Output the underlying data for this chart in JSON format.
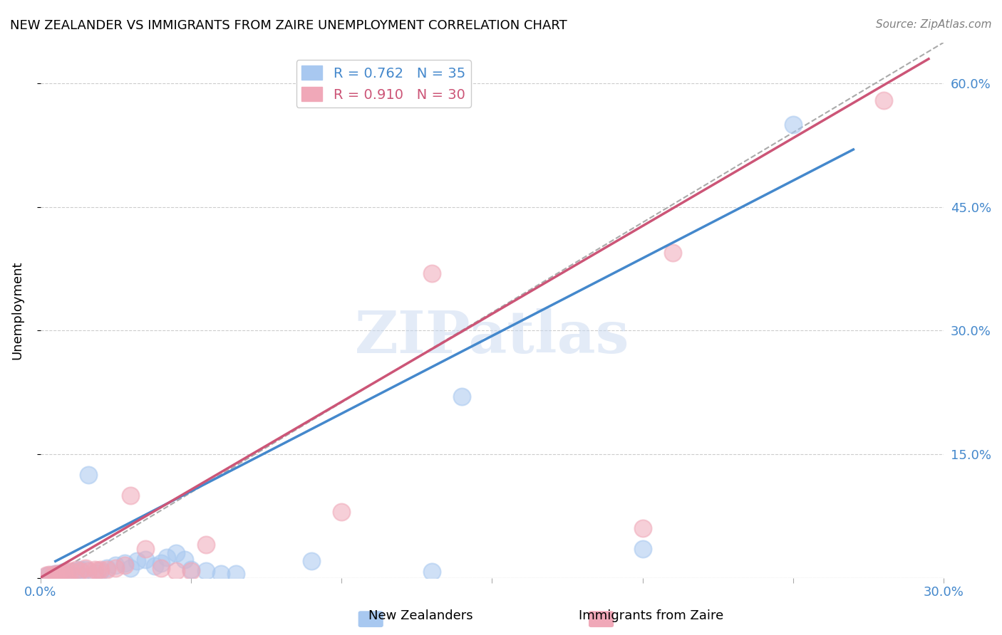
{
  "title": "NEW ZEALANDER VS IMMIGRANTS FROM ZAIRE UNEMPLOYMENT CORRELATION CHART",
  "source": "Source: ZipAtlas.com",
  "xlabel": "",
  "ylabel": "Unemployment",
  "xlim": [
    0.0,
    0.3
  ],
  "ylim": [
    0.0,
    0.65
  ],
  "x_ticks": [
    0.0,
    0.05,
    0.1,
    0.15,
    0.2,
    0.25,
    0.3
  ],
  "x_tick_labels": [
    "0.0%",
    "",
    "",
    "",
    "",
    "",
    "30.0%"
  ],
  "y_ticks": [
    0.0,
    0.15,
    0.3,
    0.45,
    0.6
  ],
  "y_tick_labels_right": [
    "",
    "15.0%",
    "30.0%",
    "45.0%",
    "60.0%"
  ],
  "legend": {
    "blue_R": "R = 0.762",
    "blue_N": "N = 35",
    "pink_R": "R = 0.910",
    "pink_N": "N = 30"
  },
  "legend_labels": [
    "New Zealanders",
    "Immigrants from Zaire"
  ],
  "blue_color": "#a8c8f0",
  "pink_color": "#f0a8b8",
  "blue_line_color": "#4488cc",
  "pink_line_color": "#cc5577",
  "diagonal_color": "#aaaaaa",
  "watermark": "ZIPatlas",
  "blue_scatter": [
    [
      0.005,
      0.005
    ],
    [
      0.008,
      0.007
    ],
    [
      0.01,
      0.004
    ],
    [
      0.012,
      0.008
    ],
    [
      0.015,
      0.01
    ],
    [
      0.018,
      0.006
    ],
    [
      0.02,
      0.008
    ],
    [
      0.022,
      0.012
    ],
    [
      0.025,
      0.015
    ],
    [
      0.028,
      0.018
    ],
    [
      0.03,
      0.012
    ],
    [
      0.032,
      0.02
    ],
    [
      0.035,
      0.022
    ],
    [
      0.038,
      0.014
    ],
    [
      0.04,
      0.018
    ],
    [
      0.042,
      0.025
    ],
    [
      0.045,
      0.03
    ],
    [
      0.048,
      0.022
    ],
    [
      0.05,
      0.01
    ],
    [
      0.055,
      0.008
    ],
    [
      0.06,
      0.005
    ],
    [
      0.065,
      0.005
    ],
    [
      0.003,
      0.003
    ],
    [
      0.007,
      0.006
    ],
    [
      0.009,
      0.003
    ],
    [
      0.013,
      0.01
    ],
    [
      0.016,
      0.125
    ],
    [
      0.09,
      0.02
    ],
    [
      0.13,
      0.007
    ],
    [
      0.2,
      0.035
    ],
    [
      0.14,
      0.22
    ],
    [
      0.25,
      0.55
    ],
    [
      0.002,
      0.002
    ],
    [
      0.004,
      0.004
    ],
    [
      0.006,
      0.005
    ]
  ],
  "pink_scatter": [
    [
      0.005,
      0.005
    ],
    [
      0.008,
      0.006
    ],
    [
      0.01,
      0.008
    ],
    [
      0.012,
      0.01
    ],
    [
      0.015,
      0.012
    ],
    [
      0.018,
      0.01
    ],
    [
      0.02,
      0.01
    ],
    [
      0.022,
      0.01
    ],
    [
      0.025,
      0.012
    ],
    [
      0.028,
      0.015
    ],
    [
      0.03,
      0.1
    ],
    [
      0.035,
      0.035
    ],
    [
      0.04,
      0.012
    ],
    [
      0.045,
      0.008
    ],
    [
      0.05,
      0.008
    ],
    [
      0.055,
      0.04
    ],
    [
      0.002,
      0.003
    ],
    [
      0.003,
      0.004
    ],
    [
      0.006,
      0.005
    ],
    [
      0.007,
      0.006
    ],
    [
      0.009,
      0.007
    ],
    [
      0.013,
      0.008
    ],
    [
      0.016,
      0.008
    ],
    [
      0.019,
      0.009
    ],
    [
      0.1,
      0.08
    ],
    [
      0.13,
      0.37
    ],
    [
      0.2,
      0.06
    ],
    [
      0.21,
      0.395
    ],
    [
      0.28,
      0.58
    ],
    [
      0.004,
      0.003
    ]
  ],
  "blue_line": [
    [
      0.005,
      0.02
    ],
    [
      0.27,
      0.52
    ]
  ],
  "pink_line": [
    [
      0.0,
      0.0
    ],
    [
      0.295,
      0.63
    ]
  ],
  "diagonal_line": [
    [
      0.005,
      0.005
    ],
    [
      0.3,
      0.65
    ]
  ]
}
